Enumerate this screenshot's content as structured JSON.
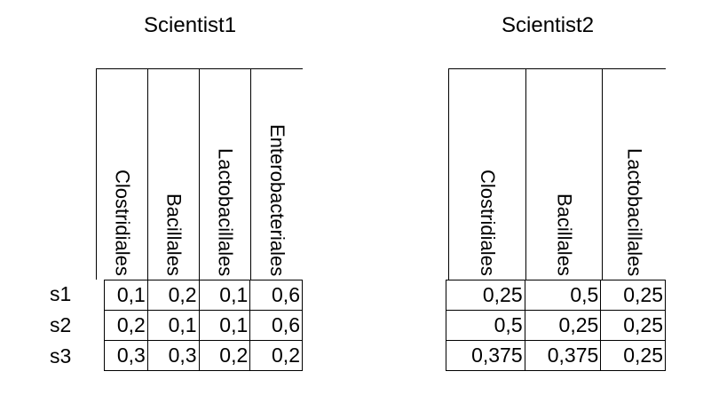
{
  "tables": [
    {
      "title": "Scientist1",
      "columns": [
        "Clostridiales",
        "Bacillales",
        "Lactobacillales",
        "Enterobacteriales"
      ],
      "rows": [
        [
          "0,1",
          "0,2",
          "0,1",
          "0,6"
        ],
        [
          "0,2",
          "0,1",
          "0,1",
          "0,6"
        ],
        [
          "0,3",
          "0,3",
          "0,2",
          "0,2"
        ]
      ]
    },
    {
      "title": "Scientist2",
      "columns": [
        "Clostridiales",
        "Bacillales",
        "Lactobacillales"
      ],
      "rows": [
        [
          "0,25",
          "0,5",
          "0,25"
        ],
        [
          "0,5",
          "0,25",
          "0,25"
        ],
        [
          "0,375",
          "0,375",
          "0,25"
        ]
      ]
    }
  ],
  "row_labels": [
    "s1",
    "s2",
    "s3"
  ]
}
